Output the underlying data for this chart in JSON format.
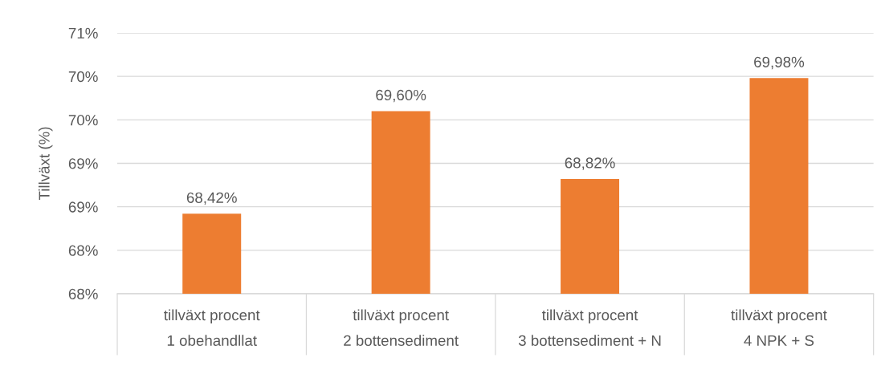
{
  "chart_data": {
    "type": "bar",
    "ylabel": "Tillväxt (%)",
    "categories": [
      "tillväxt procent\n1 obehandllat",
      "tillväxt procent\n2 bottensediment",
      "tillväxt procent\n3 bottensediment + N",
      "tillväxt procent\n4 NPK + S"
    ],
    "values": [
      68.42,
      69.6,
      68.82,
      69.98
    ],
    "color": "#ed7d31",
    "value_labels": [
      "68,42%",
      "69,60%",
      "68,82%",
      "69,98%"
    ],
    "ylim": [
      67.5,
      70.5
    ],
    "yticks": [
      {
        "value": 67.5,
        "label": "68%"
      },
      {
        "value": 68.0,
        "label": "68%"
      },
      {
        "value": 68.5,
        "label": "69%"
      },
      {
        "value": 69.0,
        "label": "69%"
      },
      {
        "value": 69.5,
        "label": "70%"
      },
      {
        "value": 70.0,
        "label": "70%"
      },
      {
        "value": 70.5,
        "label": "71%"
      }
    ],
    "grid": "y"
  }
}
